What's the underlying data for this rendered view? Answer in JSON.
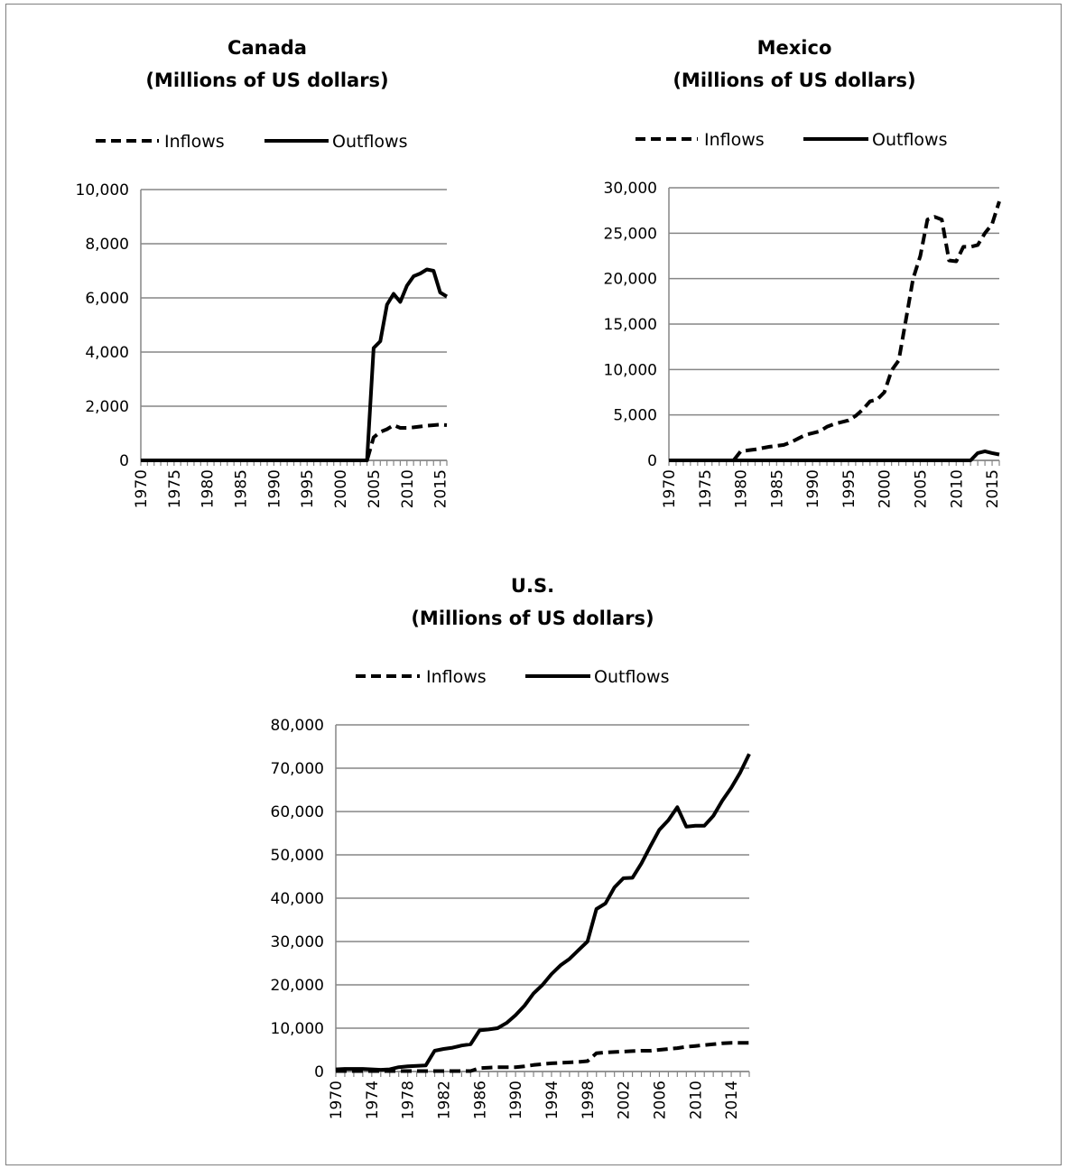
{
  "chart_data": [
    {
      "type": "line",
      "title": "Canada",
      "subtitle": "(Millions of US dollars)",
      "xlabel": "",
      "ylabel": "",
      "ylim": [
        0,
        10000
      ],
      "yticks": [
        "10,000",
        "8,000",
        "6,000",
        "4,000",
        "2,000",
        "0"
      ],
      "xtick_labels": [
        "1970",
        "1975",
        "1980",
        "1985",
        "1990",
        "1995",
        "2000",
        "2005",
        "2010",
        "2015"
      ],
      "legend": "top",
      "grid": true,
      "x": [
        1970,
        1971,
        1972,
        1973,
        1974,
        1975,
        1976,
        1977,
        1978,
        1979,
        1980,
        1981,
        1982,
        1983,
        1984,
        1985,
        1986,
        1987,
        1988,
        1989,
        1990,
        1991,
        1992,
        1993,
        1994,
        1995,
        1996,
        1997,
        1998,
        1999,
        2000,
        2001,
        2002,
        2003,
        2004,
        2005,
        2006,
        2007,
        2008,
        2009,
        2010,
        2011,
        2012,
        2013,
        2014,
        2015,
        2016
      ],
      "series": [
        {
          "name": "Inflows",
          "style": "dashed",
          "values": [
            0,
            0,
            0,
            0,
            0,
            0,
            0,
            0,
            0,
            0,
            0,
            0,
            0,
            0,
            0,
            0,
            0,
            0,
            0,
            0,
            0,
            0,
            0,
            0,
            0,
            0,
            0,
            0,
            0,
            0,
            0,
            0,
            0,
            0,
            0,
            850,
            1050,
            1150,
            1300,
            1200,
            1200,
            1220,
            1250,
            1280,
            1300,
            1320,
            1300
          ]
        },
        {
          "name": "Outflows",
          "style": "solid",
          "values": [
            0,
            0,
            0,
            0,
            0,
            0,
            0,
            0,
            0,
            0,
            0,
            0,
            0,
            0,
            0,
            0,
            0,
            0,
            0,
            0,
            0,
            0,
            0,
            0,
            0,
            0,
            0,
            0,
            0,
            0,
            0,
            0,
            0,
            0,
            0,
            4150,
            4400,
            5750,
            6150,
            5850,
            6450,
            6800,
            6900,
            7050,
            7000,
            6200,
            6050
          ]
        }
      ]
    },
    {
      "type": "line",
      "title": "Mexico",
      "subtitle": "(Millions of US dollars)",
      "xlabel": "",
      "ylabel": "",
      "ylim": [
        0,
        30000
      ],
      "yticks": [
        "30,000",
        "25,000",
        "20,000",
        "15,000",
        "10,000",
        "5,000",
        "0"
      ],
      "xtick_labels": [
        "1970",
        "1975",
        "1980",
        "1985",
        "1990",
        "1995",
        "2000",
        "2005",
        "2010",
        "2015"
      ],
      "legend": "top",
      "grid": true,
      "x": [
        1970,
        1971,
        1972,
        1973,
        1974,
        1975,
        1976,
        1977,
        1978,
        1979,
        1980,
        1981,
        1982,
        1983,
        1984,
        1985,
        1986,
        1987,
        1988,
        1989,
        1990,
        1991,
        1992,
        1993,
        1994,
        1995,
        1996,
        1997,
        1998,
        1999,
        2000,
        2001,
        2002,
        2003,
        2004,
        2005,
        2006,
        2007,
        2008,
        2009,
        2010,
        2011,
        2012,
        2013,
        2014,
        2015,
        2016
      ],
      "series": [
        {
          "name": "Inflows",
          "style": "dashed",
          "values": [
            0,
            0,
            0,
            0,
            0,
            0,
            0,
            0,
            0,
            0,
            1000,
            1100,
            1200,
            1350,
            1500,
            1600,
            1700,
            2000,
            2400,
            2800,
            3000,
            3200,
            3700,
            4000,
            4200,
            4400,
            4900,
            5600,
            6500,
            6700,
            7500,
            9900,
            11000,
            15500,
            20000,
            22500,
            26500,
            26800,
            26500,
            22000,
            21900,
            23500,
            23500,
            23700,
            25000,
            26000,
            28500
          ]
        },
        {
          "name": "Outflows",
          "style": "solid",
          "values": [
            0,
            0,
            0,
            0,
            0,
            0,
            0,
            0,
            0,
            0,
            0,
            0,
            0,
            0,
            0,
            0,
            0,
            0,
            0,
            0,
            0,
            0,
            0,
            0,
            0,
            0,
            0,
            0,
            0,
            0,
            0,
            0,
            0,
            0,
            0,
            0,
            0,
            0,
            0,
            0,
            0,
            0,
            0,
            800,
            1000,
            800,
            650
          ]
        }
      ]
    },
    {
      "type": "line",
      "title": "U.S.",
      "subtitle": "(Millions of US dollars)",
      "xlabel": "",
      "ylabel": "",
      "ylim": [
        0,
        80000
      ],
      "yticks": [
        "80,000",
        "70,000",
        "60,000",
        "50,000",
        "40,000",
        "30,000",
        "20,000",
        "10,000",
        "0"
      ],
      "xtick_labels": [
        "1970",
        "1974",
        "1978",
        "1982",
        "1986",
        "1990",
        "1994",
        "1998",
        "2002",
        "2006",
        "2010",
        "2014"
      ],
      "legend": "top",
      "grid": true,
      "x": [
        1970,
        1971,
        1972,
        1973,
        1974,
        1975,
        1976,
        1977,
        1978,
        1979,
        1980,
        1981,
        1982,
        1983,
        1984,
        1985,
        1986,
        1987,
        1988,
        1989,
        1990,
        1991,
        1992,
        1993,
        1994,
        1995,
        1996,
        1997,
        1998,
        1999,
        2000,
        2001,
        2002,
        2003,
        2004,
        2005,
        2006,
        2007,
        2008,
        2009,
        2010,
        2011,
        2012,
        2013,
        2014,
        2015,
        2016
      ],
      "series": [
        {
          "name": "Inflows",
          "style": "dashed",
          "values": [
            100,
            100,
            100,
            100,
            100,
            100,
            100,
            100,
            100,
            100,
            100,
            100,
            100,
            100,
            100,
            100,
            800,
            900,
            1000,
            1000,
            1000,
            1200,
            1500,
            1700,
            1900,
            2000,
            2100,
            2200,
            2400,
            4200,
            4400,
            4500,
            4600,
            4700,
            4800,
            4800,
            5000,
            5200,
            5400,
            5700,
            5900,
            6100,
            6300,
            6500,
            6600,
            6600,
            6600
          ]
        },
        {
          "name": "Outflows",
          "style": "solid",
          "values": [
            500,
            600,
            600,
            600,
            500,
            400,
            500,
            1000,
            1200,
            1300,
            1400,
            4800,
            5200,
            5500,
            6000,
            6300,
            9500,
            9700,
            10000,
            11200,
            13000,
            15200,
            18000,
            20000,
            22500,
            24500,
            26000,
            28000,
            30000,
            37500,
            38800,
            42500,
            44600,
            44700,
            48000,
            52000,
            55800,
            58000,
            61000,
            56500,
            56700,
            56700,
            59000,
            62500,
            65500,
            69000,
            73300
          ]
        }
      ]
    }
  ]
}
